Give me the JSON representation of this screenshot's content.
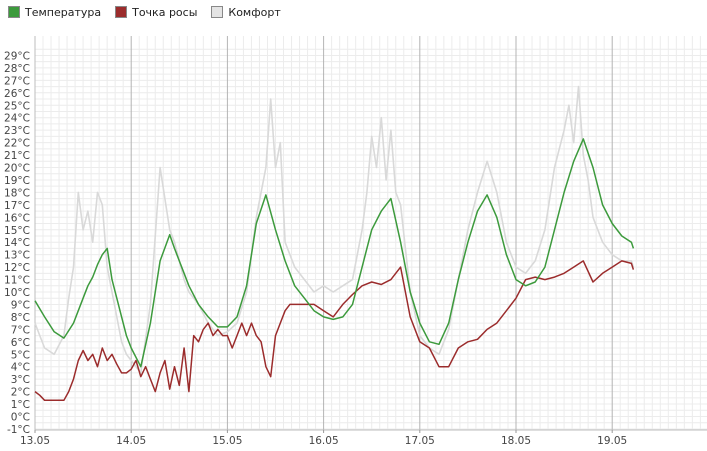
{
  "chart_data": {
    "type": "line",
    "x_ticks": [
      "13.05",
      "14.05",
      "15.05",
      "16.05",
      "17.05",
      "18.05",
      "19.05"
    ],
    "y_ticks": [
      "-1°C",
      "0°C",
      "1°C",
      "2°C",
      "3°C",
      "4°C",
      "5°C",
      "6°C",
      "7°C",
      "8°C",
      "9°C",
      "10°C",
      "11°C",
      "12°C",
      "13°C",
      "14°C",
      "15°C",
      "16°C",
      "17°C",
      "18°C",
      "19°C",
      "20°C",
      "21°C",
      "22°C",
      "23°C",
      "24°C",
      "25°C",
      "26°C",
      "27°C",
      "28°C",
      "29°C"
    ],
    "xlim": [
      0,
      7
    ],
    "ylim": [
      -2,
      30.5
    ],
    "grid": true,
    "legend_position": "top-left",
    "series": [
      {
        "name": "Температура",
        "color": "#3c9a3c",
        "x": [
          0.0,
          0.1,
          0.2,
          0.3,
          0.4,
          0.5,
          0.55,
          0.6,
          0.65,
          0.7,
          0.75,
          0.8,
          0.85,
          0.9,
          0.95,
          1.0,
          1.1,
          1.2,
          1.3,
          1.4,
          1.45,
          1.5,
          1.55,
          1.6,
          1.7,
          1.8,
          1.9,
          2.0,
          2.1,
          2.2,
          2.3,
          2.4,
          2.5,
          2.6,
          2.7,
          2.8,
          2.9,
          3.0,
          3.1,
          3.2,
          3.3,
          3.4,
          3.5,
          3.6,
          3.7,
          3.8,
          3.9,
          4.0,
          4.1,
          4.2,
          4.3,
          4.4,
          4.5,
          4.6,
          4.7,
          4.8,
          4.9,
          5.0,
          5.1,
          5.2,
          5.3,
          5.4,
          5.5,
          5.6,
          5.7,
          5.8,
          5.9,
          6.0,
          6.1,
          6.2,
          6.22
        ],
        "y": [
          9.3,
          8.0,
          6.8,
          6.3,
          7.5,
          9.5,
          10.5,
          11.2,
          12.2,
          13.0,
          13.5,
          11.0,
          9.5,
          8.0,
          6.5,
          5.5,
          4.0,
          7.5,
          12.5,
          14.6,
          13.5,
          12.5,
          11.5,
          10.5,
          9.0,
          8.0,
          7.2,
          7.2,
          8.0,
          10.5,
          15.5,
          17.8,
          15.0,
          12.5,
          10.5,
          9.5,
          8.5,
          8.0,
          7.8,
          8.0,
          9.0,
          12.0,
          15.0,
          16.5,
          17.5,
          14.0,
          10.0,
          7.5,
          6.0,
          5.8,
          7.5,
          11.0,
          14.0,
          16.5,
          17.8,
          16.0,
          13.0,
          11.0,
          10.5,
          10.8,
          12.0,
          15.0,
          18.0,
          20.5,
          22.3,
          20.0,
          17.0,
          15.5,
          14.5,
          14.0,
          13.5
        ]
      },
      {
        "name": "Точка росы",
        "color": "#9b2c2c",
        "x": [
          0.0,
          0.05,
          0.1,
          0.2,
          0.3,
          0.35,
          0.4,
          0.45,
          0.5,
          0.55,
          0.6,
          0.65,
          0.7,
          0.75,
          0.8,
          0.85,
          0.9,
          0.95,
          1.0,
          1.05,
          1.1,
          1.15,
          1.2,
          1.25,
          1.3,
          1.35,
          1.4,
          1.45,
          1.5,
          1.55,
          1.6,
          1.65,
          1.7,
          1.75,
          1.8,
          1.85,
          1.9,
          1.95,
          2.0,
          2.05,
          2.1,
          2.15,
          2.2,
          2.25,
          2.3,
          2.35,
          2.4,
          2.45,
          2.5,
          2.55,
          2.6,
          2.65,
          2.7,
          2.8,
          2.9,
          3.0,
          3.1,
          3.2,
          3.3,
          3.4,
          3.5,
          3.6,
          3.7,
          3.8,
          3.9,
          4.0,
          4.1,
          4.2,
          4.3,
          4.4,
          4.5,
          4.6,
          4.7,
          4.8,
          4.9,
          5.0,
          5.1,
          5.2,
          5.3,
          5.4,
          5.5,
          5.6,
          5.7,
          5.8,
          5.9,
          6.0,
          6.1,
          6.2,
          6.22
        ],
        "y": [
          2.0,
          1.7,
          1.3,
          1.3,
          1.3,
          2.0,
          3.0,
          4.5,
          5.3,
          4.5,
          5.0,
          4.0,
          5.5,
          4.5,
          5.0,
          4.2,
          3.5,
          3.5,
          3.8,
          4.5,
          3.2,
          4.0,
          3.0,
          2.0,
          3.5,
          4.5,
          2.2,
          4.0,
          2.5,
          5.5,
          2.0,
          6.5,
          6.0,
          7.0,
          7.5,
          6.5,
          7.0,
          6.5,
          6.5,
          5.5,
          6.5,
          7.5,
          6.5,
          7.5,
          6.5,
          6.0,
          4.0,
          3.2,
          6.5,
          7.5,
          8.5,
          9.0,
          9.0,
          9.0,
          9.0,
          8.5,
          8.0,
          9.0,
          9.8,
          10.5,
          10.8,
          10.6,
          11.0,
          12.0,
          8.0,
          6.0,
          5.5,
          4.0,
          4.0,
          5.5,
          6.0,
          6.2,
          7.0,
          7.5,
          8.5,
          9.5,
          11.0,
          11.2,
          11.0,
          11.2,
          11.5,
          12.0,
          12.5,
          10.8,
          11.5,
          12.0,
          12.5,
          12.3,
          11.8
        ]
      },
      {
        "name": "Комфорт",
        "color": "#d9d9d9",
        "x": [
          0.0,
          0.05,
          0.1,
          0.2,
          0.3,
          0.35,
          0.4,
          0.45,
          0.5,
          0.55,
          0.6,
          0.65,
          0.7,
          0.75,
          0.8,
          0.85,
          0.9,
          0.95,
          1.0,
          1.1,
          1.2,
          1.3,
          1.4,
          1.45,
          1.5,
          1.55,
          1.6,
          1.7,
          1.8,
          1.9,
          2.0,
          2.1,
          2.2,
          2.3,
          2.4,
          2.45,
          2.5,
          2.55,
          2.6,
          2.7,
          2.8,
          2.9,
          3.0,
          3.1,
          3.2,
          3.3,
          3.35,
          3.4,
          3.45,
          3.5,
          3.55,
          3.6,
          3.65,
          3.7,
          3.75,
          3.8,
          3.9,
          4.0,
          4.1,
          4.2,
          4.3,
          4.4,
          4.5,
          4.6,
          4.7,
          4.8,
          4.9,
          5.0,
          5.1,
          5.2,
          5.3,
          5.4,
          5.5,
          5.55,
          5.6,
          5.65,
          5.7,
          5.75,
          5.8,
          5.85,
          5.9,
          6.0,
          6.1,
          6.2,
          6.22
        ],
        "y": [
          7.5,
          6.5,
          5.5,
          5.0,
          6.5,
          9.5,
          12.0,
          18.0,
          15.0,
          16.5,
          14.0,
          18.0,
          17.0,
          12.0,
          10.0,
          8.0,
          6.0,
          5.0,
          4.5,
          3.5,
          9.0,
          20.0,
          15.0,
          14.0,
          12.5,
          11.0,
          10.0,
          9.0,
          7.5,
          6.5,
          6.8,
          7.5,
          10.0,
          16.0,
          20.0,
          25.5,
          20.0,
          22.0,
          14.0,
          12.0,
          11.0,
          10.0,
          10.5,
          10.0,
          10.5,
          11.0,
          13.0,
          15.0,
          18.0,
          22.5,
          20.0,
          24.0,
          19.0,
          23.0,
          18.0,
          17.0,
          10.0,
          6.5,
          5.5,
          5.0,
          7.0,
          11.0,
          15.0,
          18.0,
          20.5,
          18.0,
          14.0,
          12.0,
          11.5,
          12.5,
          15.0,
          20.0,
          23.0,
          25.0,
          22.0,
          26.5,
          21.0,
          19.0,
          16.0,
          15.0,
          14.0,
          13.0,
          12.5,
          12.5,
          12.0
        ]
      }
    ]
  }
}
